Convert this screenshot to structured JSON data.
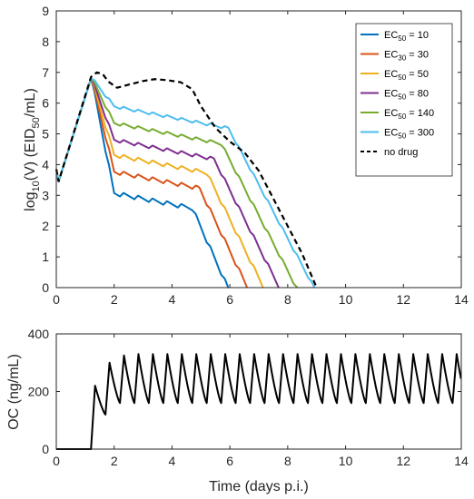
{
  "chart_data": [
    {
      "type": "line",
      "xlabel": "",
      "ylabel_main": "log",
      "ylabel_sub1": "10",
      "ylabel_mid": "(V) (EID",
      "ylabel_sub2": "50",
      "ylabel_end": "/mL)",
      "xlim": [
        0,
        14
      ],
      "ylim": [
        0,
        9
      ],
      "xticks": [
        "0",
        "2",
        "4",
        "6",
        "8",
        "10",
        "12",
        "14"
      ],
      "yticks": [
        "0",
        "1",
        "2",
        "3",
        "4",
        "5",
        "6",
        "7",
        "8",
        "9"
      ],
      "grid": false,
      "legend_position": "top-right",
      "series": [
        {
          "label_main": "EC",
          "label_sub": "50",
          "label_tail": " = 10",
          "color": "#0072BD",
          "style": "solid",
          "peak": 6.8,
          "plateau": 3.0,
          "slope": 2.1,
          "amp": 0.28
        },
        {
          "label_main": "EC",
          "label_sub": "30",
          "label_tail": " = 30",
          "color": "#D95319",
          "style": "solid",
          "peak": 6.8,
          "plateau": 3.7,
          "slope": 1.95,
          "amp": 0.26
        },
        {
          "label_main": "EC",
          "label_sub": "50",
          "label_tail": " = 50",
          "color": "#EDB120",
          "style": "solid",
          "peak": 6.8,
          "plateau": 4.25,
          "slope": 1.9,
          "amp": 0.25
        },
        {
          "label_main": "EC",
          "label_sub": "50",
          "label_tail": " = 80",
          "color": "#7E2F8E",
          "style": "solid",
          "peak": 6.8,
          "plateau": 4.75,
          "slope": 1.85,
          "amp": 0.22
        },
        {
          "label_main": "EC",
          "label_sub": "50",
          "label_tail": " = 140",
          "color": "#77AC30",
          "style": "solid",
          "peak": 6.8,
          "plateau": 5.3,
          "slope": 1.8,
          "amp": 0.2
        },
        {
          "label_main": "EC",
          "label_sub": "50",
          "label_tail": " = 300",
          "color": "#4DBEEE",
          "style": "solid",
          "peak": 6.8,
          "plateau": 5.85,
          "slope": 1.75,
          "amp": 0.18
        },
        {
          "label_main": "no drug",
          "label_sub": "",
          "label_tail": "",
          "color": "#000000",
          "style": "dashed"
        }
      ],
      "no_drug_points": [
        [
          0,
          3.85
        ],
        [
          0.08,
          3.45
        ],
        [
          1.2,
          6.85
        ],
        [
          1.4,
          7.0
        ],
        [
          1.6,
          6.95
        ],
        [
          1.8,
          6.7
        ],
        [
          2.1,
          6.5
        ],
        [
          2.5,
          6.6
        ],
        [
          3.0,
          6.72
        ],
        [
          3.4,
          6.78
        ],
        [
          3.8,
          6.75
        ],
        [
          4.3,
          6.68
        ],
        [
          4.7,
          6.45
        ],
        [
          5.0,
          5.9
        ],
        [
          5.5,
          5.2
        ],
        [
          6.0,
          4.75
        ],
        [
          6.5,
          4.4
        ],
        [
          7.0,
          3.8
        ],
        [
          7.5,
          2.9
        ],
        [
          8.0,
          2.0
        ],
        [
          8.5,
          1.1
        ],
        [
          9.0,
          0
        ]
      ]
    },
    {
      "type": "line",
      "xlabel": "Time (days p.i.)",
      "ylabel": "OC (ng/mL)",
      "xlim": [
        0,
        14
      ],
      "ylim": [
        0,
        400
      ],
      "xticks": [
        "0",
        "2",
        "4",
        "6",
        "8",
        "10",
        "12",
        "14"
      ],
      "yticks": [
        "0",
        "200",
        "400"
      ],
      "grid": false,
      "series": [
        {
          "name": "OC",
          "color": "#000000",
          "start": 1.2,
          "interval": 0.5,
          "peaks": [
            220,
            300,
            325,
            330
          ],
          "trough_first": 120,
          "trough": 160,
          "end": 14
        }
      ]
    }
  ]
}
